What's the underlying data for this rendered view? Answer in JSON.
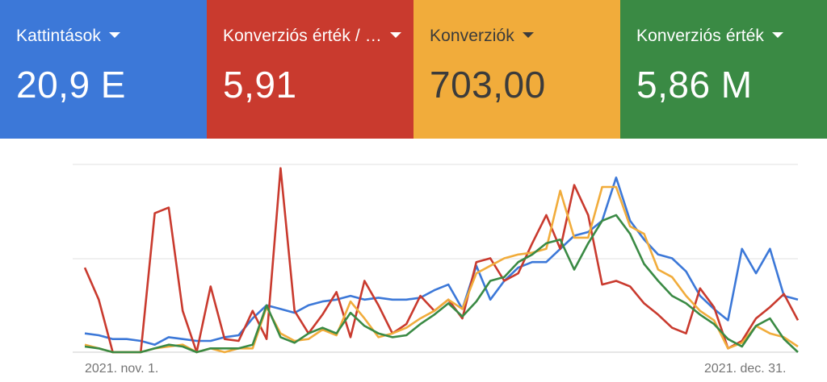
{
  "metrics": [
    {
      "label": "Kattintások",
      "value": "20,9 E",
      "color": "#3c78d8"
    },
    {
      "label": "Konverziós érték / …",
      "value": "5,91",
      "color": "#c93a2e"
    },
    {
      "label": "Konverziók",
      "value": "703,00",
      "color": "#f1ac3b"
    },
    {
      "label": "Konverziós érték",
      "value": "5,86 M",
      "color": "#3a8a44"
    }
  ],
  "chart_data": {
    "type": "line",
    "xlabel_start": "2021. nov. 1.",
    "xlabel_end": "2021. dec. 31.",
    "grid": true,
    "series": [
      {
        "color": "#3c78d8",
        "values": [
          0.1,
          0.09,
          0.07,
          0.07,
          0.06,
          0.04,
          0.08,
          0.07,
          0.06,
          0.06,
          0.08,
          0.09,
          0.18,
          0.25,
          0.23,
          0.21,
          0.25,
          0.27,
          0.28,
          0.3,
          0.28,
          0.29,
          0.28,
          0.28,
          0.29,
          0.33,
          0.36,
          0.23,
          0.46,
          0.28,
          0.38,
          0.45,
          0.48,
          0.48,
          0.55,
          0.62,
          0.64,
          0.7,
          0.93,
          0.7,
          0.6,
          0.52,
          0.5,
          0.43,
          0.3,
          0.23,
          0.17,
          0.55,
          0.42,
          0.55,
          0.3,
          0.28
        ]
      },
      {
        "color": "#c93a2e",
        "values": [
          0.45,
          0.28,
          0.0,
          0.0,
          0.0,
          0.74,
          0.77,
          0.22,
          0.0,
          0.35,
          0.07,
          0.06,
          0.22,
          0.07,
          0.98,
          0.22,
          0.1,
          0.2,
          0.32,
          0.08,
          0.38,
          0.25,
          0.1,
          0.15,
          0.3,
          0.22,
          0.28,
          0.18,
          0.48,
          0.5,
          0.38,
          0.42,
          0.58,
          0.73,
          0.55,
          0.89,
          0.73,
          0.36,
          0.38,
          0.35,
          0.26,
          0.2,
          0.13,
          0.1,
          0.34,
          0.24,
          0.02,
          0.06,
          0.18,
          0.24,
          0.31,
          0.17
        ]
      },
      {
        "color": "#f1ac3b",
        "values": [
          0.04,
          0.02,
          0.0,
          0.0,
          0.0,
          0.02,
          0.03,
          0.04,
          0.0,
          0.02,
          0.0,
          0.02,
          0.02,
          0.24,
          0.1,
          0.06,
          0.07,
          0.12,
          0.09,
          0.27,
          0.18,
          0.08,
          0.1,
          0.13,
          0.18,
          0.22,
          0.28,
          0.23,
          0.42,
          0.46,
          0.5,
          0.52,
          0.53,
          0.55,
          0.86,
          0.61,
          0.61,
          0.88,
          0.88,
          0.67,
          0.63,
          0.44,
          0.4,
          0.3,
          0.22,
          0.17,
          0.02,
          0.05,
          0.14,
          0.1,
          0.08,
          0.03
        ]
      },
      {
        "color": "#3a8a44",
        "values": [
          0.03,
          0.02,
          0.0,
          0.0,
          0.0,
          0.02,
          0.04,
          0.03,
          0.0,
          0.02,
          0.02,
          0.02,
          0.04,
          0.25,
          0.08,
          0.05,
          0.1,
          0.13,
          0.1,
          0.21,
          0.14,
          0.1,
          0.08,
          0.09,
          0.15,
          0.2,
          0.26,
          0.19,
          0.27,
          0.38,
          0.4,
          0.48,
          0.52,
          0.58,
          0.6,
          0.44,
          0.58,
          0.7,
          0.73,
          0.63,
          0.47,
          0.38,
          0.3,
          0.26,
          0.2,
          0.15,
          0.07,
          0.03,
          0.14,
          0.18,
          0.07,
          0.0
        ]
      }
    ]
  }
}
